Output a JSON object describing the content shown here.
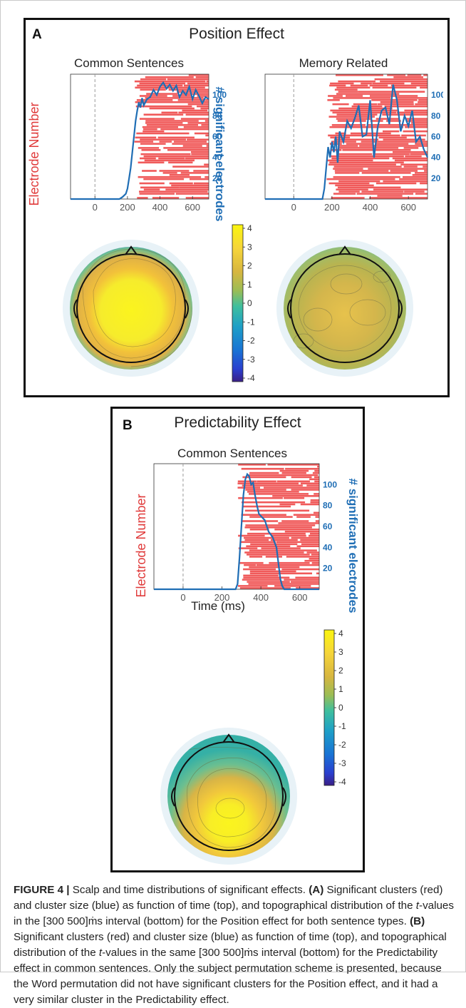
{
  "colors": {
    "cluster": "#f05a5a",
    "size_line": "#1f6eb5",
    "electrode_label": "#e03a3a",
    "axis_text": "#555555",
    "frame": "#111111"
  },
  "figure": {
    "panelA": {
      "label": "A",
      "title": "Position Effect",
      "plots": [
        {
          "subtitle": "Common Sentences",
          "left_axis_label": "Electrode Number",
          "right_axis_label": "# significant electrodes"
        },
        {
          "subtitle": "Memory Related"
        }
      ],
      "colorbar_ticks": [
        "4",
        "3",
        "2",
        "1",
        "0",
        "-1",
        "-2",
        "-3",
        "-4"
      ]
    },
    "panelB": {
      "label": "B",
      "title": "Predictability Effect",
      "plot": {
        "subtitle": "Common Sentences",
        "left_axis_label": "Electrode Number",
        "right_axis_label": "# significant electrodes",
        "x_axis_label": "Time (ms)"
      },
      "colorbar_ticks": [
        "4",
        "3",
        "2",
        "1",
        "0",
        "-1",
        "-2",
        "-3",
        "-4"
      ]
    }
  },
  "caption": {
    "figure_label": "FIGURE 4 |",
    "title": " Scalp and time distributions of significant effects. ",
    "a_label": "(A)",
    "a_text_1": " Significant clusters (red) and cluster size (blue) as function of time (top), and topographical distribution of the ",
    "t_symbol": "t",
    "a_text_2": "-values in the [300 500]ṁs interval (bottom) for the Position effect for both sentence types. ",
    "b_label": "(B)",
    "b_text_1": " Significant clusters (red) and cluster size (blue) as function of time (top), and topographical distribution of the ",
    "b_text_2": "-values in the same [300 500]ṁs interval (bottom) for the Predictability effect in common sentences. Only the subject permutation scheme is presented, because the Word permutation did not have significant clusters for the Position effect, and it had a very similar cluster in the Predictability effect."
  },
  "chart_data": [
    {
      "type": "line",
      "name_ref": "A-common",
      "x_ticks": [
        0,
        200,
        400,
        600
      ],
      "xlim": [
        -150,
        700
      ],
      "right_y_ticks": [
        20,
        40,
        60,
        80,
        100
      ],
      "ylim": [
        0,
        120
      ],
      "cluster_onset_ms": 240,
      "x": [
        -150,
        150,
        170,
        190,
        200,
        210,
        220,
        230,
        240,
        250,
        260,
        270,
        280,
        290,
        300,
        320,
        340,
        360,
        380,
        400,
        420,
        440,
        460,
        480,
        500,
        520,
        540,
        560,
        580,
        600,
        620,
        640,
        660,
        680,
        700
      ],
      "y": [
        0,
        0,
        2,
        5,
        10,
        20,
        30,
        45,
        60,
        75,
        85,
        93,
        88,
        97,
        90,
        96,
        98,
        105,
        100,
        108,
        112,
        106,
        110,
        104,
        109,
        98,
        104,
        100,
        108,
        96,
        105,
        99,
        92,
        98,
        96
      ]
    },
    {
      "type": "line",
      "name_ref": "A-memory",
      "x_ticks": [
        0,
        200,
        400,
        600
      ],
      "xlim": [
        -150,
        700
      ],
      "right_y_ticks": [
        20,
        40,
        60,
        80,
        100
      ],
      "ylim": [
        0,
        120
      ],
      "cluster_onset_ms": 170,
      "x": [
        -150,
        150,
        160,
        170,
        180,
        190,
        200,
        210,
        220,
        230,
        240,
        260,
        280,
        300,
        320,
        340,
        360,
        380,
        400,
        420,
        440,
        460,
        480,
        500,
        520,
        540,
        560,
        580,
        600,
        620,
        640,
        660,
        680,
        700
      ],
      "y": [
        0,
        0,
        10,
        30,
        50,
        40,
        55,
        45,
        60,
        35,
        65,
        55,
        75,
        68,
        78,
        90,
        60,
        62,
        95,
        40,
        70,
        85,
        88,
        72,
        110,
        95,
        65,
        80,
        70,
        85,
        55,
        60,
        48,
        40
      ]
    },
    {
      "type": "line",
      "name_ref": "B-common",
      "x_ticks": [
        0,
        200,
        400,
        600
      ],
      "xlim": [
        -150,
        700
      ],
      "right_y_ticks": [
        20,
        40,
        60,
        80,
        100
      ],
      "ylim": [
        0,
        120
      ],
      "cluster_onset_ms": 280,
      "x": [
        -150,
        270,
        280,
        290,
        300,
        310,
        320,
        330,
        340,
        350,
        360,
        370,
        380,
        390,
        400,
        420,
        440,
        460,
        480,
        490,
        500,
        510,
        520,
        700
      ],
      "y": [
        0,
        0,
        5,
        30,
        60,
        90,
        105,
        110,
        108,
        100,
        102,
        90,
        80,
        72,
        70,
        66,
        55,
        50,
        40,
        25,
        10,
        3,
        0,
        0
      ]
    }
  ]
}
